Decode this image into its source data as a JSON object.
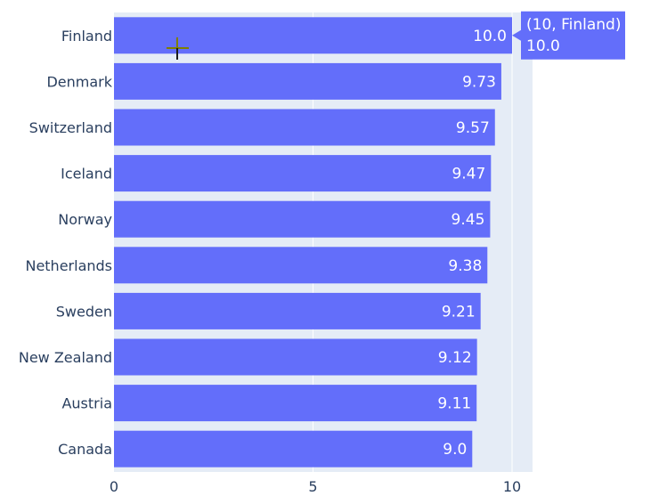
{
  "chart_data": {
    "type": "bar",
    "orientation": "horizontal",
    "categories": [
      "Finland",
      "Denmark",
      "Switzerland",
      "Iceland",
      "Norway",
      "Netherlands",
      "Sweden",
      "New Zealand",
      "Austria",
      "Canada"
    ],
    "values": [
      10.0,
      9.73,
      9.57,
      9.47,
      9.45,
      9.38,
      9.21,
      9.12,
      9.11,
      9.0
    ],
    "value_labels": [
      "10.0",
      "9.73",
      "9.57",
      "9.47",
      "9.45",
      "9.38",
      "9.21",
      "9.12",
      "9.11",
      "9.0"
    ],
    "x_ticks": [
      0,
      5,
      10
    ],
    "x_tick_labels": [
      "0",
      "5",
      "10"
    ],
    "xlim": [
      0,
      10.53
    ],
    "title": "",
    "xlabel": "",
    "ylabel": "",
    "grid": true,
    "legend": false,
    "colors": {
      "bar": "#636efa",
      "plot_bg": "#e5ecf6",
      "grid": "#ffffff",
      "text": "#2a3f5f",
      "crosshair": "#7f7f00"
    }
  },
  "tooltip": {
    "line1": "(10, Finland)",
    "line2": "10.0"
  }
}
